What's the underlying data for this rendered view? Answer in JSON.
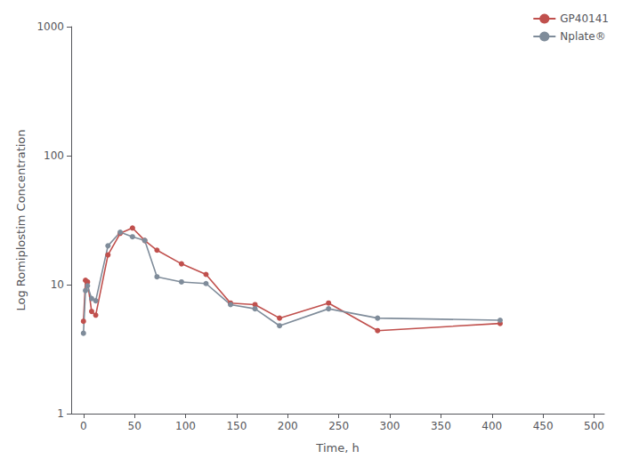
{
  "chart_data": {
    "type": "line",
    "x": [
      0,
      2,
      4,
      8,
      12,
      24,
      36,
      48,
      60,
      72,
      96,
      120,
      144,
      168,
      192,
      240,
      288,
      408
    ],
    "series": [
      {
        "name": "GP40141",
        "color": "#c0504d",
        "values": [
          5.2,
          10.8,
          10.5,
          6.2,
          5.8,
          17.0,
          25.0,
          27.5,
          22.0,
          18.5,
          14.5,
          12.0,
          7.2,
          7.0,
          5.5,
          7.2,
          4.4,
          5.0
        ]
      },
      {
        "name": "Nplate®",
        "color": "#7f8c9a",
        "values": [
          4.2,
          9.0,
          9.8,
          7.8,
          7.5,
          20.0,
          25.5,
          23.5,
          22.0,
          11.5,
          10.5,
          10.2,
          7.0,
          6.5,
          4.8,
          6.5,
          5.5,
          5.3
        ]
      }
    ],
    "xlabel": "Time, h",
    "ylabel": "Log Romiplostim Concentration",
    "xlim": [
      -12,
      510
    ],
    "xticks": [
      0,
      50,
      100,
      150,
      200,
      250,
      300,
      350,
      400,
      450,
      500
    ],
    "ylim": [
      1,
      1000
    ],
    "yticks": [
      1,
      10,
      100,
      1000
    ],
    "log": "y",
    "grid": false,
    "legend": "upper right",
    "marker": "circle"
  }
}
